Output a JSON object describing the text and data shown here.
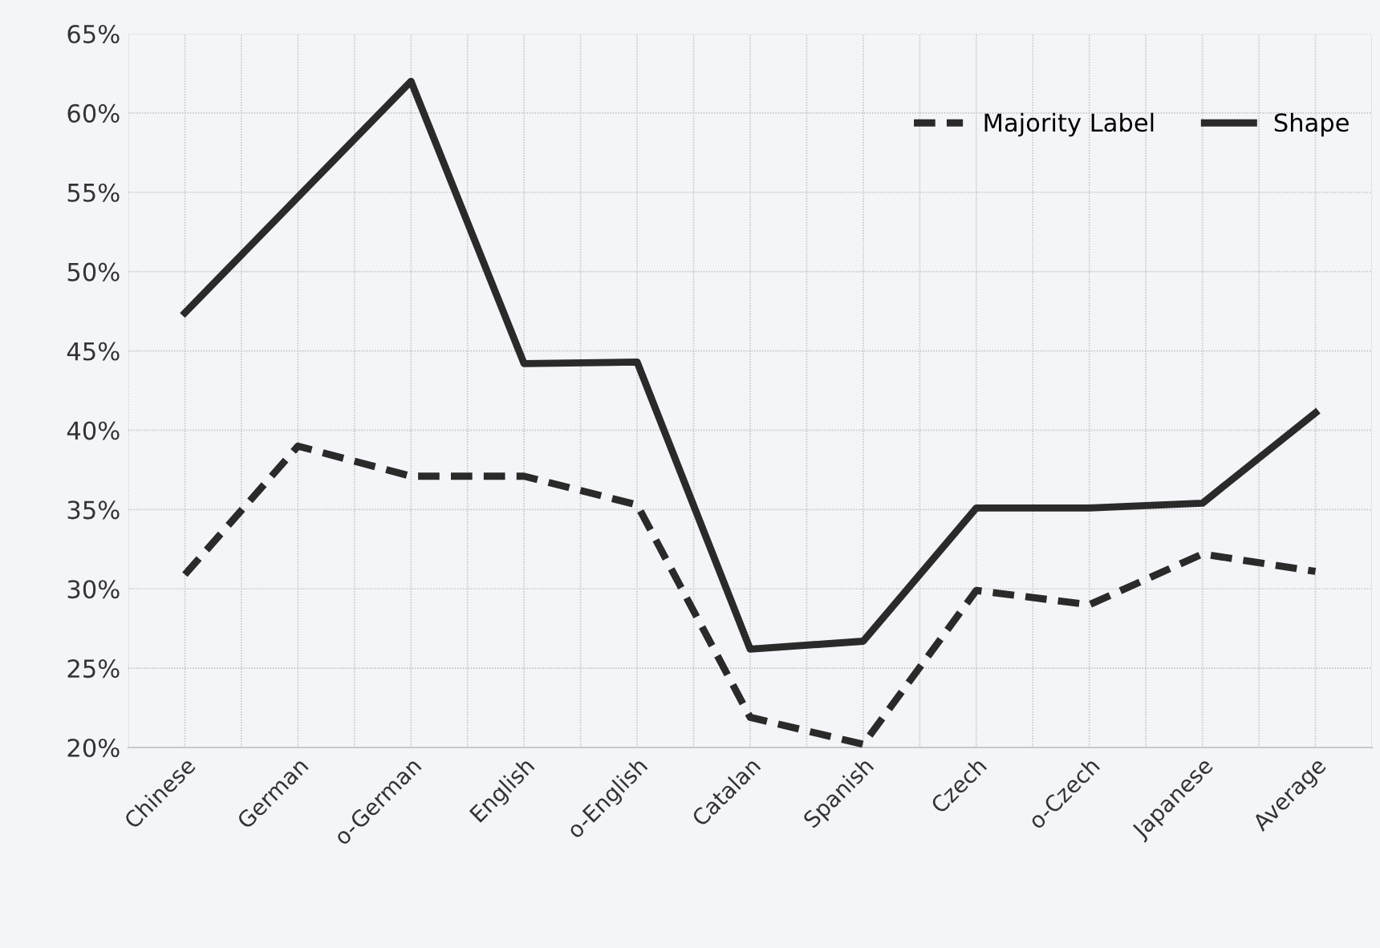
{
  "chart_data": {
    "type": "line",
    "categories": [
      "Chinese",
      "German",
      "o-German",
      "English",
      "o-English",
      "Catalan",
      "Spanish",
      "Czech",
      "o-Czech",
      "Japanese",
      "Average"
    ],
    "series": [
      {
        "name": "Majority Label",
        "color": "#2a2a2a",
        "line_style": "dashed",
        "values": [
          30.9,
          39.0,
          37.1,
          37.1,
          35.3,
          21.9,
          20.2,
          29.9,
          29.0,
          32.2,
          31.1
        ]
      },
      {
        "name": "Shape",
        "color": "#2a2a2a",
        "line_style": "solid",
        "values": [
          47.4,
          54.7,
          62.0,
          44.2,
          44.3,
          26.2,
          26.7,
          35.1,
          35.1,
          35.4,
          41.1
        ]
      }
    ],
    "ylim": [
      20,
      65
    ],
    "yticks": [
      {
        "value": 20,
        "label": "20%"
      },
      {
        "value": 25,
        "label": "25%"
      },
      {
        "value": 30,
        "label": "30%"
      },
      {
        "value": 35,
        "label": "35%"
      },
      {
        "value": 40,
        "label": "40%"
      },
      {
        "value": 45,
        "label": "45%"
      },
      {
        "value": 50,
        "label": "50%"
      },
      {
        "value": 55,
        "label": "55%"
      },
      {
        "value": 60,
        "label": "60%"
      },
      {
        "value": 65,
        "label": "65%"
      }
    ],
    "grid": true,
    "legend": "top right",
    "marker": "none"
  }
}
